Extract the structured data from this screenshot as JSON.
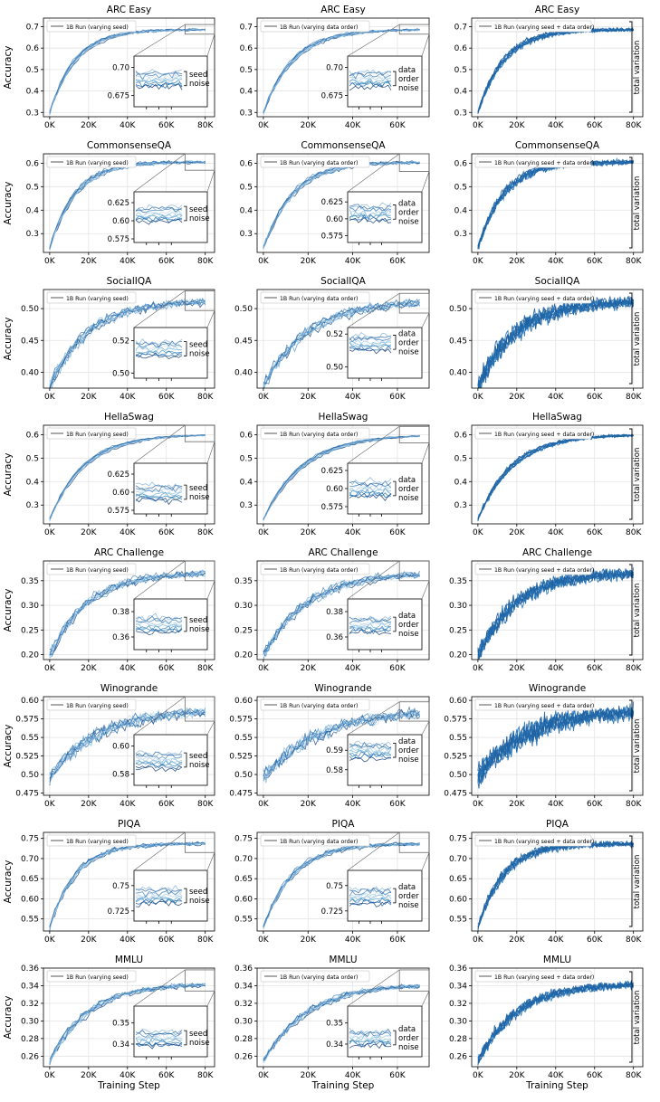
{
  "labels": {
    "ylabel": "Accuracy",
    "xlabel": "Training Step",
    "total_variation": "total variation",
    "seed_noise": [
      "seed",
      "noise"
    ],
    "order_noise": [
      "data",
      "order",
      "noise"
    ]
  },
  "columns": [
    {
      "key": "seed",
      "legend": "1B Run (varying seed)",
      "xmax": 80,
      "xticks": [
        "0K",
        "20K",
        "40K",
        "60K",
        "80K"
      ]
    },
    {
      "key": "order",
      "legend": "1B Run (varying data order)",
      "xmax": 70,
      "xticks": [
        "0K",
        "20K",
        "40K",
        "60K"
      ]
    },
    {
      "key": "total",
      "legend": "1B Run (varying seed + data order)",
      "xmax": 80,
      "xticks": [
        "0K",
        "20K",
        "40K",
        "60K",
        "80K"
      ]
    }
  ],
  "chart_data": [
    {
      "type": "line",
      "title": "ARC Easy",
      "start": 0.3,
      "final": 0.69,
      "rate": 6,
      "noise": 0.006,
      "ylim": [
        0.28,
        0.74
      ],
      "yticks": [
        0.3,
        0.4,
        0.5,
        0.6,
        0.7
      ],
      "inset_seed": {
        "ylim": [
          0.665,
          0.71
        ],
        "yticks": [
          0.675,
          0.7
        ]
      },
      "inset_order": {
        "ylim": [
          0.665,
          0.71
        ],
        "yticks": [
          0.675,
          0.7
        ]
      }
    },
    {
      "type": "line",
      "title": "CommonsenseQA",
      "start": 0.24,
      "final": 0.61,
      "rate": 6,
      "noise": 0.008,
      "ylim": [
        0.22,
        0.64
      ],
      "yticks": [
        0.3,
        0.4,
        0.5,
        0.6
      ],
      "inset_seed": {
        "ylim": [
          0.57,
          0.64
        ],
        "yticks": [
          0.575,
          0.6,
          0.625
        ]
      },
      "inset_order": {
        "ylim": [
          0.565,
          0.64
        ],
        "yticks": [
          0.575,
          0.6,
          0.625
        ]
      }
    },
    {
      "type": "line",
      "title": "SocialIQA",
      "start": 0.38,
      "final": 0.515,
      "rate": 4,
      "noise": 0.007,
      "ylim": [
        0.375,
        0.53
      ],
      "yticks": [
        0.4,
        0.45,
        0.5
      ],
      "inset_seed": {
        "ylim": [
          0.497,
          0.528
        ],
        "yticks": [
          0.5,
          0.52
        ]
      },
      "inset_order": {
        "ylim": [
          0.493,
          0.524
        ],
        "yticks": [
          0.5,
          0.52
        ]
      }
    },
    {
      "type": "line",
      "title": "HellaSwag",
      "start": 0.24,
      "final": 0.6,
      "rate": 4.5,
      "noise": 0.004,
      "ylim": [
        0.22,
        0.64
      ],
      "yticks": [
        0.3,
        0.4,
        0.5,
        0.6
      ],
      "inset_seed": {
        "ylim": [
          0.57,
          0.64
        ],
        "yticks": [
          0.575,
          0.6,
          0.625
        ]
      },
      "inset_order": {
        "ylim": [
          0.565,
          0.635
        ],
        "yticks": [
          0.575,
          0.6,
          0.625
        ]
      }
    },
    {
      "type": "line",
      "title": "ARC Challenge",
      "start": 0.2,
      "final": 0.37,
      "rate": 4,
      "noise": 0.008,
      "ylim": [
        0.19,
        0.39
      ],
      "yticks": [
        0.2,
        0.25,
        0.3,
        0.35
      ],
      "inset_seed": {
        "ylim": [
          0.35,
          0.39
        ],
        "yticks": [
          0.36,
          0.38
        ]
      },
      "inset_order": {
        "ylim": [
          0.35,
          0.39
        ],
        "yticks": [
          0.36,
          0.38
        ]
      }
    },
    {
      "type": "line",
      "title": "Winogrande",
      "start": 0.5,
      "final": 0.59,
      "rate": 3,
      "noise": 0.008,
      "ylim": [
        0.472,
        0.605
      ],
      "yticks": [
        0.475,
        0.5,
        0.525,
        0.55,
        0.575,
        0.6
      ],
      "inset_seed": {
        "ylim": [
          0.572,
          0.608
        ],
        "yticks": [
          0.58,
          0.6
        ]
      },
      "inset_order": {
        "ylim": [
          0.572,
          0.598
        ],
        "yticks": [
          0.58,
          0.59
        ]
      }
    },
    {
      "type": "line",
      "title": "PIQA",
      "start": 0.53,
      "final": 0.74,
      "rate": 6,
      "noise": 0.005,
      "ylim": [
        0.52,
        0.765
      ],
      "yticks": [
        0.55,
        0.6,
        0.65,
        0.7,
        0.75
      ],
      "inset_seed": {
        "ylim": [
          0.715,
          0.765
        ],
        "yticks": [
          0.725,
          0.75
        ]
      },
      "inset_order": {
        "ylim": [
          0.715,
          0.765
        ],
        "yticks": [
          0.725,
          0.75
        ]
      }
    },
    {
      "type": "line",
      "title": "MMLU",
      "start": 0.255,
      "final": 0.343,
      "rate": 4,
      "noise": 0.003,
      "ylim": [
        0.248,
        0.36
      ],
      "yticks": [
        0.26,
        0.28,
        0.3,
        0.32,
        0.34,
        0.36
      ],
      "inset_seed": {
        "ylim": [
          0.334,
          0.358
        ],
        "yticks": [
          0.34,
          0.35
        ]
      },
      "inset_order": {
        "ylim": [
          0.334,
          0.358
        ],
        "yticks": [
          0.34,
          0.35
        ]
      }
    }
  ]
}
